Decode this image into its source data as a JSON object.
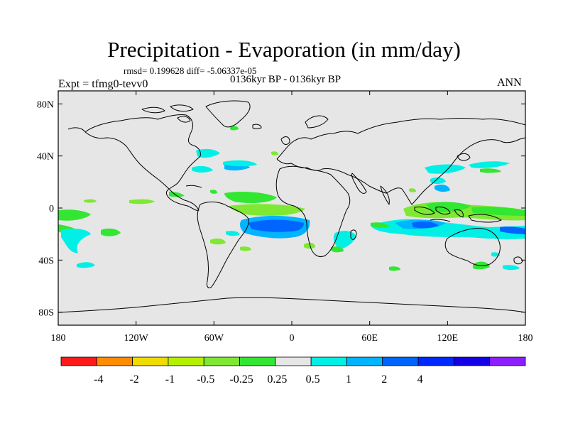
{
  "title": "Precipitation - Evaporation (in mm/day)",
  "stats": "rmsd= 0.199628 diff= -5.06337e-05",
  "experiment": "Expt = tfmg0-tevv0",
  "period": "0136kyr BP - 0136kyr BP",
  "season": "ANN",
  "colors": {
    "land_background": "#e6e6e6",
    "coastline": "#000000",
    "levels": [
      "#ff1a1a",
      "#ff8c00",
      "#f0dc00",
      "#b4f000",
      "#7ee832",
      "#32e632",
      "#e6e6e6",
      "#00f0e6",
      "#00b4ff",
      "#0064ff",
      "#0028ff",
      "#1400e6",
      "#8c1eff"
    ]
  },
  "map": {
    "projection": "cylindrical equidistant",
    "lon_range": [
      -180,
      180
    ],
    "lat_range": [
      -90,
      90
    ],
    "lat_ticks": [
      "80N",
      "40N",
      "0",
      "40S",
      "80S"
    ],
    "lon_ticks": [
      "180",
      "120W",
      "60W",
      "0",
      "60E",
      "120E",
      "180"
    ]
  },
  "colorbar": {
    "labels": [
      "-4",
      "-2",
      "-1",
      "-0.5",
      "-0.25",
      "0.25",
      "0.5",
      "1",
      "2",
      "4"
    ]
  }
}
